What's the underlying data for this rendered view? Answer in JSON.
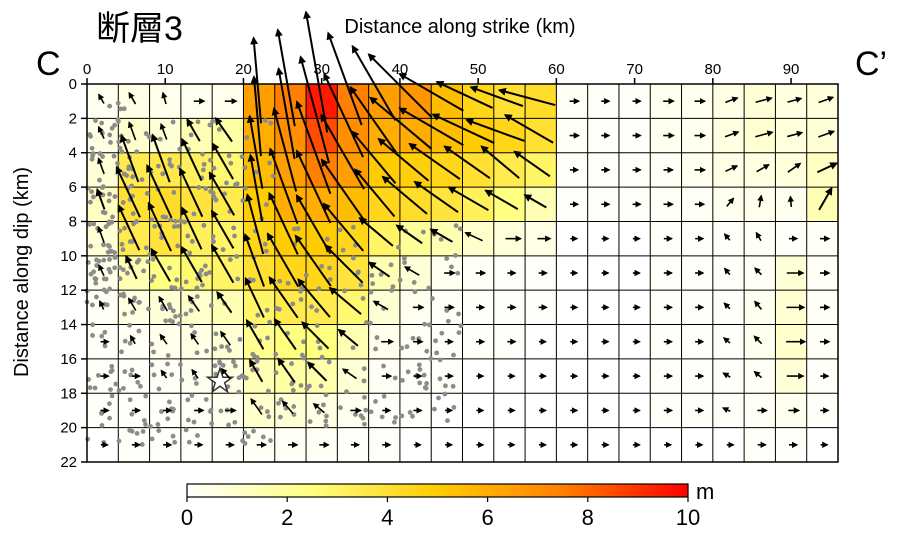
{
  "chart_data": {
    "type": "heatmap",
    "panel_label": "断層3",
    "xlabel": "Distance along strike (km)",
    "ylabel": "Distance along dip (km)",
    "corner_left": "C",
    "corner_right": "C’",
    "xlim": [
      0,
      96
    ],
    "ylim": [
      0,
      22
    ],
    "y_direction": "down",
    "cell_size_km": [
      4,
      2
    ],
    "x_ticks": [
      0,
      10,
      20,
      30,
      40,
      50,
      60,
      70,
      80,
      90
    ],
    "y_ticks": [
      0,
      2,
      4,
      6,
      8,
      10,
      12,
      14,
      16,
      18,
      20,
      22
    ],
    "colorbar": {
      "unit": "m",
      "min": 0,
      "max": 10,
      "ticks": [
        0,
        2,
        4,
        6,
        8,
        10
      ],
      "stops": [
        "#ffffff",
        "#ffff80",
        "#ffcc00",
        "#ff7f00",
        "#ff0000"
      ]
    },
    "slip_m": [
      [
        0.3,
        0.5,
        0.4,
        0.3,
        0.4,
        6.5,
        7.5,
        9.5,
        7.5,
        6.5,
        6.8,
        5.5,
        4.5,
        4.0,
        4.2,
        0.2,
        0.1,
        0.1,
        0.3,
        0.3,
        0.5,
        0.8,
        0.6,
        0.7
      ],
      [
        0.5,
        1.0,
        0.8,
        1.5,
        1.8,
        6.0,
        7.0,
        8.5,
        7.0,
        6.0,
        6.0,
        5.5,
        5.0,
        4.5,
        4.0,
        0.2,
        0.1,
        0.1,
        0.3,
        0.3,
        0.6,
        0.9,
        0.7,
        0.8
      ],
      [
        0.8,
        3.5,
        3.6,
        3.2,
        2.8,
        5.5,
        6.5,
        7.5,
        6.5,
        5.0,
        4.8,
        4.5,
        4.0,
        3.5,
        3.0,
        0.1,
        0.1,
        0.1,
        0.2,
        0.3,
        0.5,
        0.6,
        0.7,
        1.2
      ],
      [
        1.2,
        4.0,
        4.2,
        3.8,
        3.5,
        5.0,
        6.0,
        6.0,
        5.5,
        4.5,
        4.2,
        3.8,
        3.2,
        2.5,
        1.5,
        0.1,
        0.1,
        0.1,
        0.2,
        0.2,
        0.3,
        0.4,
        0.3,
        1.5
      ],
      [
        0.8,
        3.5,
        3.8,
        3.2,
        3.0,
        4.5,
        5.0,
        5.0,
        4.5,
        3.0,
        2.0,
        1.5,
        1.0,
        0.7,
        0.5,
        0.0,
        0.0,
        0.0,
        0.1,
        0.1,
        0.1,
        0.2,
        0.1,
        0.2
      ],
      [
        0.4,
        1.5,
        2.5,
        2.8,
        3.0,
        4.0,
        4.5,
        4.5,
        3.8,
        1.5,
        0.8,
        0.3,
        0.2,
        0.1,
        0.1,
        0.0,
        0.0,
        0.0,
        0.1,
        0.1,
        0.1,
        0.2,
        0.8,
        0.2
      ],
      [
        0.2,
        0.6,
        0.8,
        1.0,
        1.5,
        3.0,
        3.5,
        3.5,
        2.8,
        0.8,
        0.3,
        0.2,
        0.1,
        0.1,
        0.1,
        0.0,
        0.0,
        0.0,
        0.1,
        0.1,
        0.1,
        0.3,
        0.9,
        0.2
      ],
      [
        0.1,
        0.2,
        0.4,
        0.5,
        0.8,
        2.2,
        2.5,
        2.5,
        1.5,
        0.4,
        0.2,
        0.1,
        0.1,
        0.1,
        0.0,
        0.0,
        0.0,
        0.0,
        0.1,
        0.1,
        0.1,
        0.3,
        1.0,
        0.2
      ],
      [
        0.1,
        0.1,
        0.2,
        0.3,
        0.5,
        1.5,
        1.8,
        1.6,
        0.8,
        0.2,
        0.1,
        0.1,
        0.0,
        0.0,
        0.0,
        0.0,
        0.0,
        0.0,
        0.1,
        0.1,
        0.1,
        0.2,
        0.8,
        0.1
      ],
      [
        0.1,
        0.1,
        0.1,
        0.2,
        0.3,
        1.0,
        0.8,
        0.6,
        0.3,
        0.1,
        0.1,
        0.0,
        0.0,
        0.0,
        0.0,
        0.0,
        0.0,
        0.0,
        0.1,
        0.1,
        0.1,
        0.2,
        0.3,
        0.1
      ],
      [
        0.0,
        0.1,
        0.1,
        0.1,
        0.1,
        0.2,
        0.2,
        0.2,
        0.1,
        0.1,
        0.0,
        0.0,
        0.0,
        0.0,
        0.0,
        0.0,
        0.0,
        0.0,
        0.0,
        0.0,
        0.0,
        0.1,
        0.1,
        0.0
      ]
    ],
    "rake_deg": [
      [
        120,
        120,
        105,
        0,
        0,
        95,
        100,
        100,
        110,
        120,
        135,
        150,
        155,
        160,
        165,
        0,
        0,
        0,
        0,
        0,
        20,
        15,
        15,
        20
      ],
      [
        115,
        110,
        110,
        120,
        125,
        95,
        100,
        105,
        115,
        125,
        140,
        150,
        155,
        160,
        150,
        0,
        0,
        0,
        0,
        0,
        20,
        15,
        15,
        20
      ],
      [
        110,
        110,
        110,
        115,
        120,
        100,
        105,
        110,
        120,
        130,
        140,
        145,
        145,
        140,
        145,
        0,
        0,
        0,
        0,
        0,
        25,
        30,
        35,
        25
      ],
      [
        110,
        115,
        115,
        115,
        120,
        100,
        110,
        115,
        125,
        130,
        140,
        145,
        150,
        150,
        150,
        0,
        0,
        0,
        0,
        0,
        50,
        80,
        95,
        60
      ],
      [
        110,
        115,
        115,
        115,
        120,
        105,
        115,
        120,
        130,
        140,
        145,
        150,
        155,
        0,
        0,
        0,
        0,
        0,
        0,
        0,
        130,
        120,
        0,
        0
      ],
      [
        115,
        115,
        120,
        120,
        120,
        110,
        120,
        125,
        135,
        145,
        150,
        0,
        0,
        0,
        0,
        0,
        0,
        0,
        0,
        0,
        130,
        135,
        0,
        0
      ],
      [
        115,
        120,
        120,
        125,
        125,
        115,
        125,
        130,
        140,
        150,
        0,
        0,
        0,
        0,
        0,
        0,
        0,
        0,
        0,
        0,
        135,
        130,
        0,
        0
      ],
      [
        0,
        120,
        125,
        125,
        125,
        120,
        125,
        135,
        140,
        0,
        0,
        0,
        0,
        0,
        0,
        0,
        0,
        0,
        0,
        0,
        140,
        135,
        0,
        0
      ],
      [
        0,
        0,
        125,
        125,
        130,
        120,
        125,
        135,
        145,
        0,
        0,
        0,
        0,
        0,
        0,
        0,
        0,
        0,
        0,
        0,
        150,
        140,
        0,
        0
      ],
      [
        0,
        0,
        0,
        0,
        0,
        125,
        130,
        140,
        0,
        0,
        0,
        0,
        0,
        0,
        0,
        0,
        0,
        0,
        0,
        0,
        155,
        0,
        0,
        0
      ],
      [
        0,
        0,
        0,
        0,
        0,
        0,
        0,
        0,
        0,
        0,
        0,
        0,
        0,
        0,
        0,
        0,
        0,
        0,
        0,
        0,
        0,
        0,
        0,
        0
      ]
    ],
    "hypocenter": {
      "x": 17,
      "y": 17.3
    },
    "aftershocks": {
      "seed": 7,
      "clusters": [
        {
          "x": [
            0,
            24
          ],
          "y": [
            2,
            21
          ],
          "count": 320
        },
        {
          "x": [
            24,
            48
          ],
          "y": [
            8,
            20
          ],
          "count": 150
        },
        {
          "x": [
            0,
            6
          ],
          "y": [
            1,
            13
          ],
          "count": 60
        }
      ]
    }
  }
}
